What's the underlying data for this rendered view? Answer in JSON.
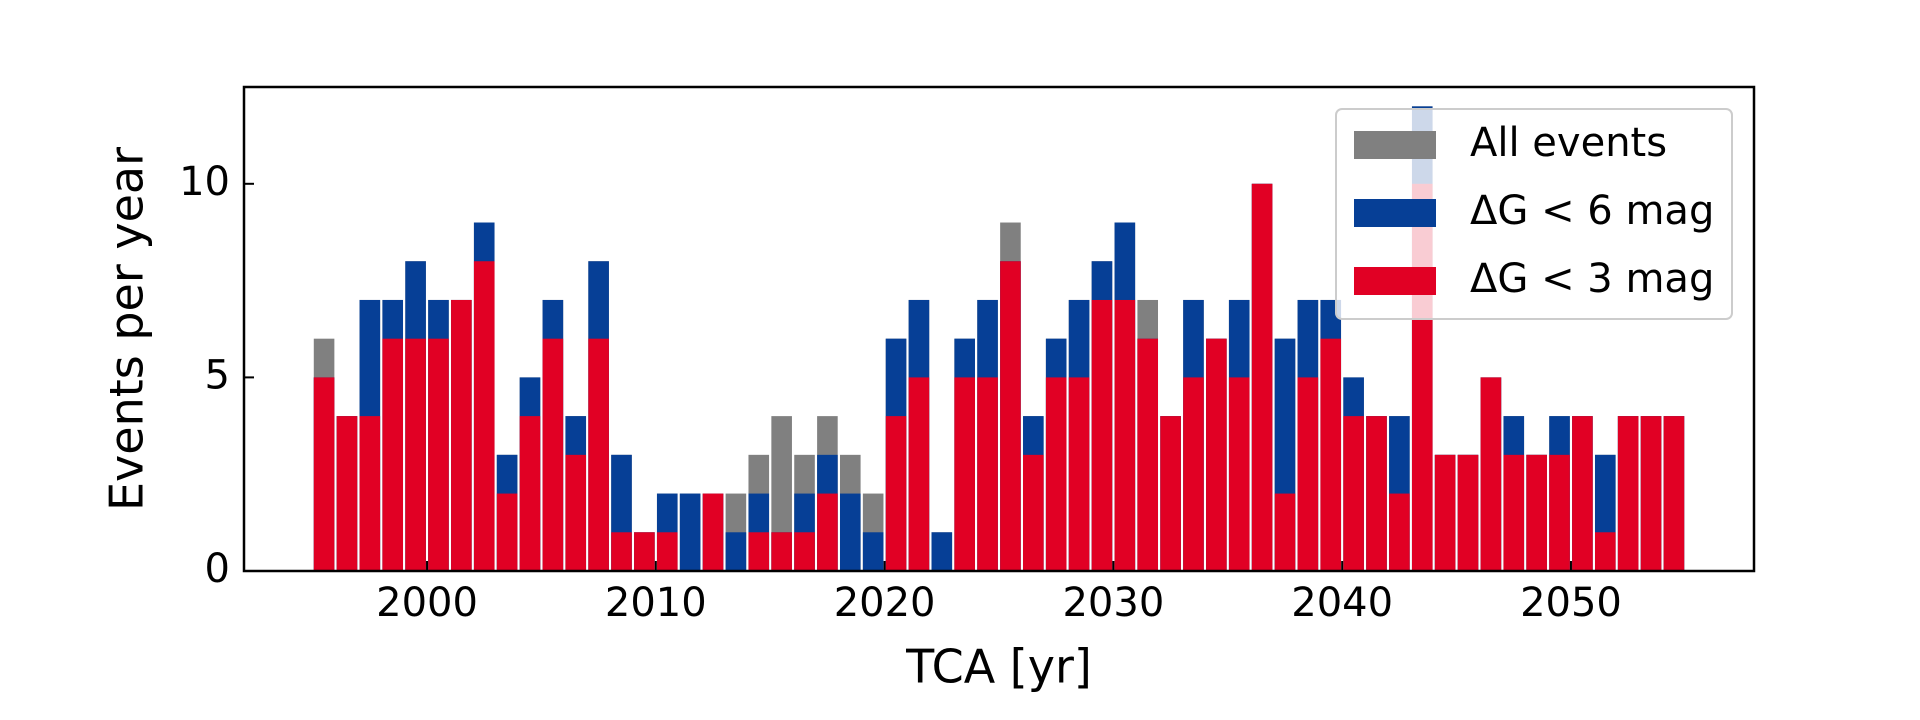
{
  "chart_data": {
    "type": "histogram",
    "xlabel": "TCA [yr]",
    "ylabel": "Events per year",
    "bins": [
      1995,
      1996,
      1997,
      1998,
      1999,
      2000,
      2001,
      2002,
      2003,
      2004,
      2005,
      2006,
      2007,
      2008,
      2009,
      2010,
      2011,
      2012,
      2013,
      2014,
      2015,
      2016,
      2017,
      2018,
      2019,
      2020,
      2021,
      2022,
      2023,
      2024,
      2025,
      2026,
      2027,
      2028,
      2029,
      2030,
      2031,
      2032,
      2033,
      2034,
      2035,
      2036,
      2037,
      2038,
      2039,
      2040,
      2041,
      2042,
      2043,
      2044,
      2045,
      2046,
      2047,
      2048,
      2049,
      2050,
      2051,
      2052,
      2053,
      2054,
      2055
    ],
    "series": [
      {
        "name": "All events",
        "color": "#808080",
        "values": [
          6,
          4,
          7,
          7,
          8,
          7,
          7,
          9,
          3,
          5,
          7,
          4,
          8,
          3,
          1,
          2,
          2,
          2,
          2,
          3,
          4,
          3,
          4,
          3,
          2,
          6,
          7,
          1,
          6,
          7,
          9,
          4,
          6,
          7,
          8,
          9,
          7,
          4,
          7,
          6,
          7,
          10,
          6,
          7,
          7,
          5,
          4,
          4,
          12,
          3,
          3,
          5,
          4,
          3,
          4,
          4,
          3,
          4,
          4,
          4
        ]
      },
      {
        "name": "ΔG < 6 mag",
        "color": "#063f96",
        "values": [
          5,
          4,
          7,
          7,
          8,
          7,
          7,
          9,
          3,
          5,
          7,
          4,
          8,
          3,
          1,
          2,
          2,
          2,
          1,
          2,
          1,
          2,
          3,
          2,
          1,
          6,
          7,
          1,
          6,
          7,
          8,
          4,
          6,
          7,
          8,
          9,
          6,
          4,
          7,
          6,
          7,
          10,
          6,
          7,
          7,
          5,
          4,
          4,
          12,
          3,
          3,
          5,
          4,
          3,
          4,
          4,
          3,
          4,
          4,
          4
        ]
      },
      {
        "name": "ΔG < 3 mag",
        "color": "#e10024",
        "values": [
          5,
          4,
          4,
          6,
          6,
          6,
          7,
          8,
          2,
          4,
          6,
          3,
          6,
          1,
          1,
          1,
          0,
          2,
          0,
          1,
          1,
          1,
          2,
          0,
          0,
          4,
          5,
          0,
          5,
          5,
          8,
          3,
          5,
          5,
          7,
          7,
          6,
          4,
          5,
          6,
          5,
          10,
          2,
          5,
          6,
          4,
          4,
          2,
          10,
          3,
          3,
          5,
          3,
          3,
          3,
          4,
          1,
          4,
          4,
          4
        ]
      }
    ],
    "xlim": [
      1992,
      2058
    ],
    "ylim": [
      0,
      12.5
    ],
    "xticks": [
      2000,
      2010,
      2020,
      2030,
      2040,
      2050
    ],
    "yticks": [
      0,
      5,
      10
    ],
    "legend": "upper right"
  }
}
